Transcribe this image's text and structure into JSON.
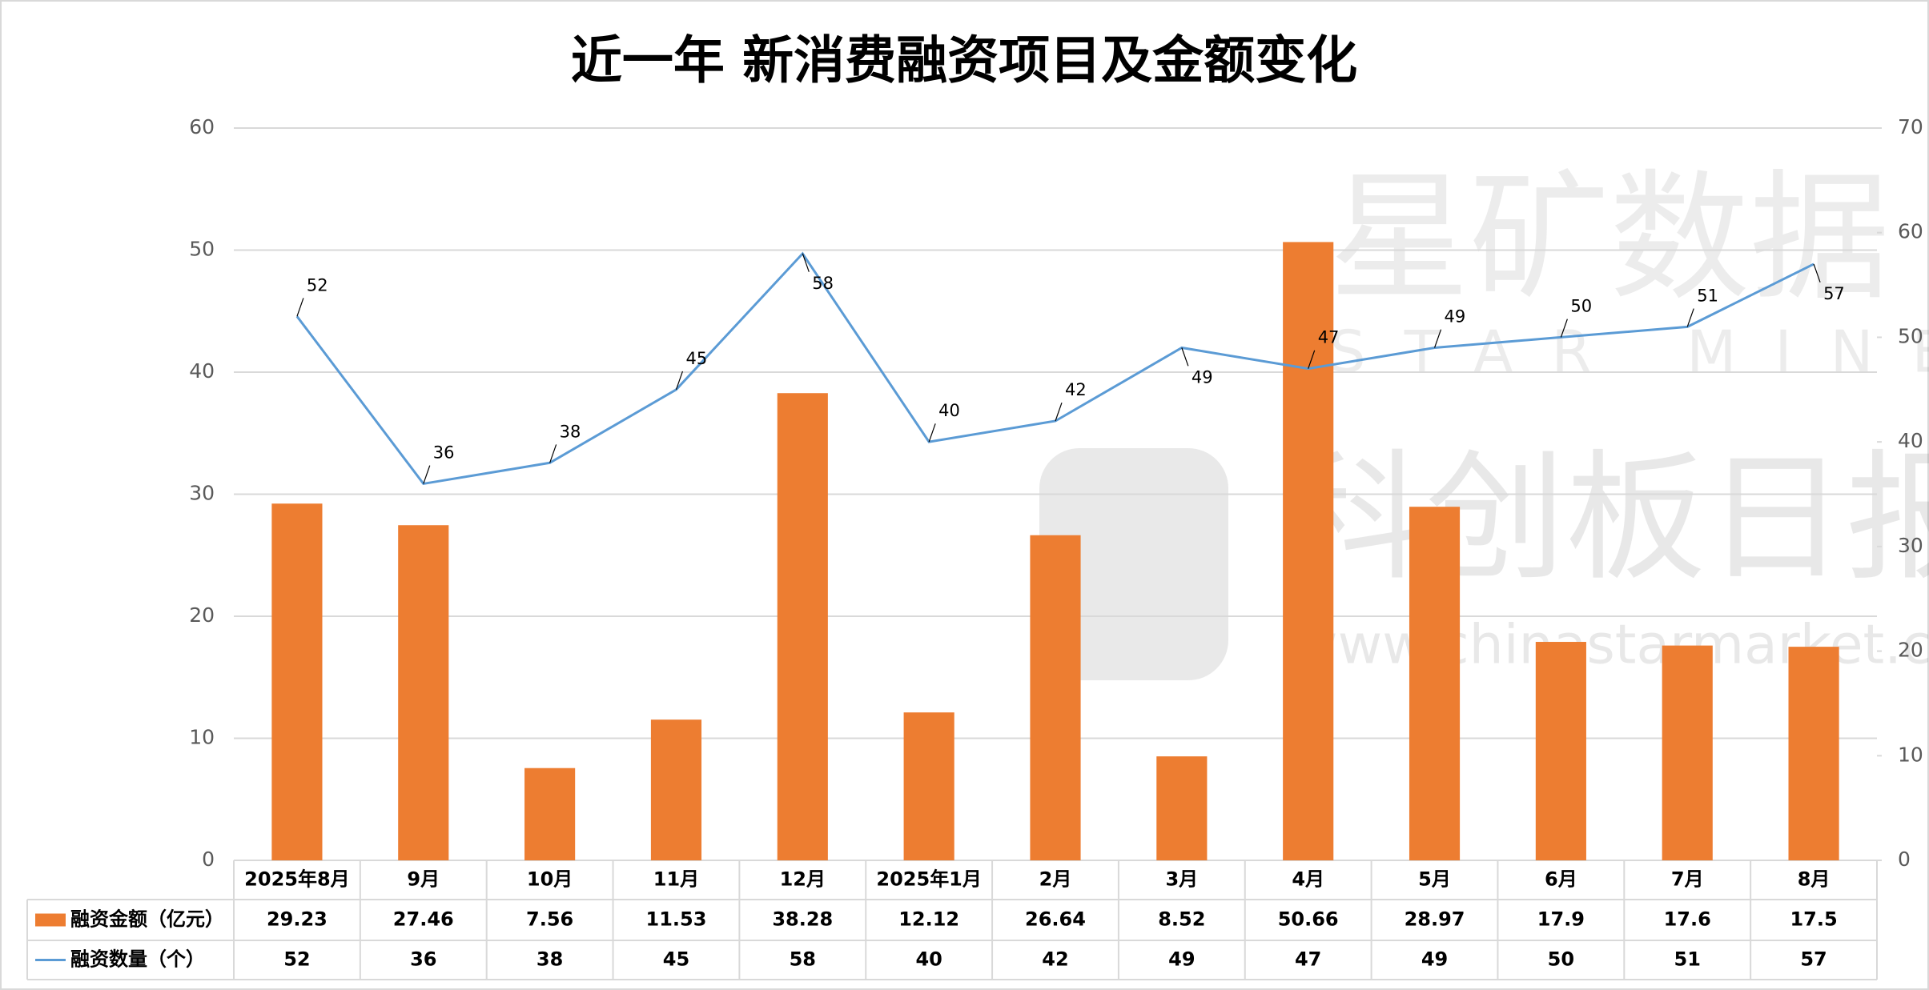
{
  "chart_data": {
    "type": "bar",
    "title": "近一年 新消费融资项目及金额变化",
    "categories": [
      "2025年8月",
      "9月",
      "10月",
      "11月",
      "12月",
      "2025年1月",
      "2月",
      "3月",
      "4月",
      "5月",
      "6月",
      "7月",
      "8月"
    ],
    "series": [
      {
        "name": "融资金额（亿元）",
        "type": "bar",
        "color": "#ed7d31",
        "values": [
          29.23,
          27.46,
          7.56,
          11.53,
          38.28,
          12.12,
          26.64,
          8.52,
          50.66,
          28.97,
          17.9,
          17.6,
          17.5
        ]
      },
      {
        "name": "融资数量（个）",
        "type": "line",
        "axis": "y2",
        "color": "#5b9bd5",
        "values": [
          52,
          36,
          38,
          45,
          58,
          40,
          42,
          49,
          47,
          49,
          50,
          51,
          57
        ]
      }
    ],
    "ylim": [
      0,
      60
    ],
    "yticks": [
      0,
      10,
      20,
      30,
      40,
      50,
      60
    ],
    "y2lim": [
      0,
      70
    ],
    "y2ticks": [
      0,
      10,
      20,
      30,
      40,
      50,
      60,
      70
    ],
    "grid": true,
    "data_table": true
  },
  "watermark": {
    "brand": "星矿数据",
    "brand_en": "STAR MINE",
    "source": "科创板日报",
    "url": "www.chinastarmarket.cn"
  }
}
